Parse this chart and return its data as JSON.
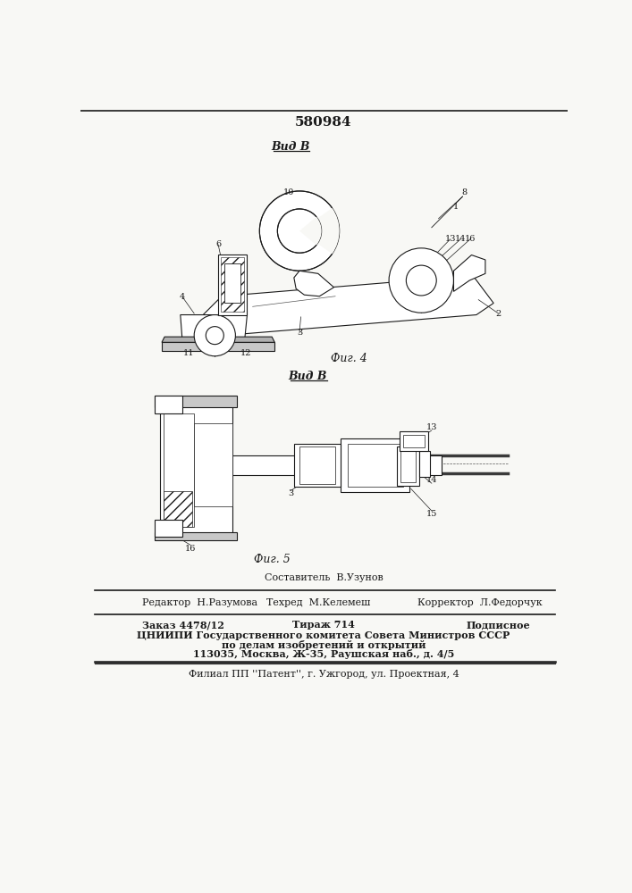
{
  "patent_number": "580984",
  "bg_color": "#f8f8f5",
  "line_color": "#1a1a1a",
  "fig4_label": "Вид В",
  "fig4_caption": "Фиг. 4",
  "fig5_label": "Вид В",
  "fig5_caption": "Фиг. 5",
  "footer_sestavitel": "Составитель  В.Узунов",
  "footer_redaktor": "Редактор  Н.Разумова",
  "footer_tehred": "Техред  М.Келемеш",
  "footer_korrektor": "Корректор  Л.Федорчук",
  "footer_zakaz": "Заказ 4478/12",
  "footer_tirazh": "Тираж 714",
  "footer_podpisnoe": "Подписное",
  "footer_tsniipi1": "ЦНИИПИ Государственного комитета Совета Министров СССР",
  "footer_tsniipi2": "по делам изобретений и открытий",
  "footer_tsniipi3": "113035, Москва, Ж-35, Раушская наб., д. 4/5",
  "footer_filial": "Филиал ПП ''Патент'', г. Ужгород, ул. Проектная, 4"
}
